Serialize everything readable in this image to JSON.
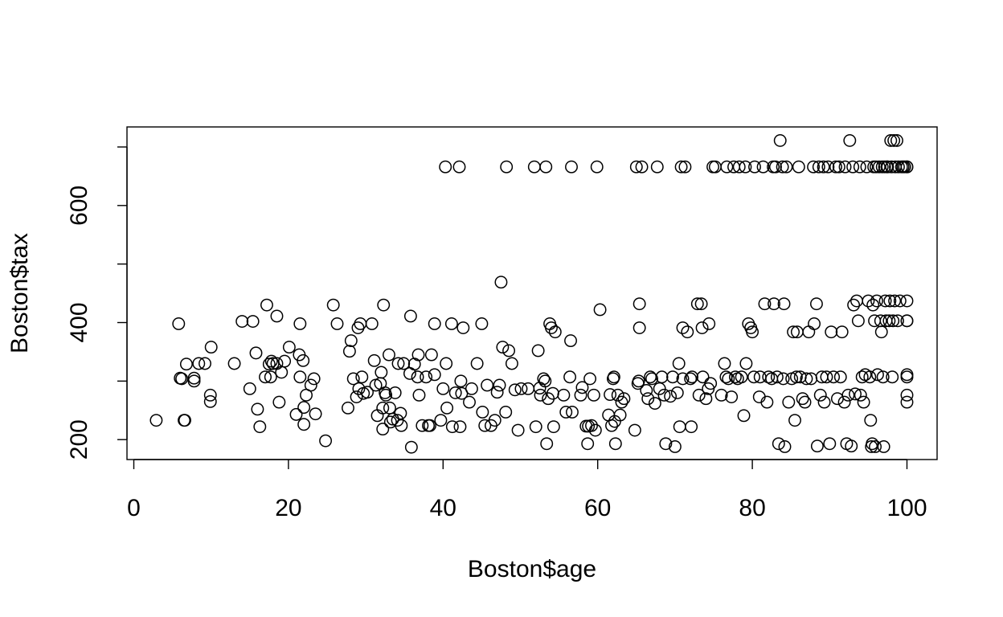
{
  "chart_data": {
    "type": "scatter",
    "title": "",
    "xlabel": "Boston$age",
    "ylabel": "Boston$tax",
    "xlim": [
      0,
      100
    ],
    "ylim": [
      187,
      711
    ],
    "x_ticks": [
      0,
      20,
      40,
      60,
      80,
      100
    ],
    "y_ticks": [
      200,
      400,
      600
    ],
    "y_minor_ticks": [
      300,
      500,
      700
    ],
    "grid": false,
    "marker": "open-circle",
    "colors": {
      "marker": "#000000",
      "axis": "#000000",
      "background": "#ffffff"
    },
    "points": [
      [
        2.9,
        233
      ],
      [
        5.8,
        398
      ],
      [
        6.0,
        305
      ],
      [
        6.2,
        304
      ],
      [
        6.5,
        233
      ],
      [
        6.6,
        233
      ],
      [
        6.8,
        329
      ],
      [
        7.8,
        300
      ],
      [
        7.8,
        305
      ],
      [
        8.4,
        330
      ],
      [
        9.2,
        330
      ],
      [
        9.9,
        276
      ],
      [
        9.9,
        265
      ],
      [
        10.0,
        358
      ],
      [
        13.0,
        330
      ],
      [
        14.0,
        402
      ],
      [
        15.0,
        287
      ],
      [
        15.4,
        402
      ],
      [
        15.8,
        348
      ],
      [
        16.0,
        252
      ],
      [
        16.3,
        222
      ],
      [
        17.0,
        307
      ],
      [
        17.2,
        430
      ],
      [
        17.5,
        329
      ],
      [
        17.7,
        307
      ],
      [
        17.8,
        334
      ],
      [
        18.0,
        330
      ],
      [
        18.5,
        411
      ],
      [
        18.5,
        330
      ],
      [
        18.8,
        264
      ],
      [
        19.1,
        315
      ],
      [
        19.5,
        334
      ],
      [
        20.1,
        358
      ],
      [
        21.0,
        243
      ],
      [
        21.4,
        345
      ],
      [
        21.5,
        398
      ],
      [
        21.5,
        307
      ],
      [
        21.9,
        335
      ],
      [
        22.0,
        226
      ],
      [
        22.0,
        255
      ],
      [
        22.3,
        276
      ],
      [
        22.9,
        293
      ],
      [
        23.3,
        304
      ],
      [
        23.5,
        244
      ],
      [
        24.8,
        198
      ],
      [
        25.8,
        430
      ],
      [
        26.3,
        398
      ],
      [
        27.7,
        254
      ],
      [
        27.9,
        351
      ],
      [
        28.1,
        369
      ],
      [
        28.4,
        304
      ],
      [
        28.8,
        273
      ],
      [
        29.0,
        391
      ],
      [
        29.1,
        287
      ],
      [
        29.3,
        398
      ],
      [
        29.5,
        307
      ],
      [
        29.7,
        279
      ],
      [
        30.2,
        281
      ],
      [
        30.8,
        398
      ],
      [
        31.1,
        335
      ],
      [
        31.3,
        293
      ],
      [
        31.5,
        241
      ],
      [
        31.9,
        296
      ],
      [
        32.0,
        315
      ],
      [
        32.2,
        254
      ],
      [
        32.2,
        218
      ],
      [
        32.3,
        430
      ],
      [
        32.5,
        280
      ],
      [
        32.6,
        276
      ],
      [
        33.0,
        345
      ],
      [
        33.1,
        254
      ],
      [
        33.2,
        230
      ],
      [
        33.5,
        235
      ],
      [
        33.8,
        280
      ],
      [
        34.1,
        233
      ],
      [
        34.2,
        330
      ],
      [
        34.5,
        245
      ],
      [
        34.6,
        224
      ],
      [
        34.9,
        330
      ],
      [
        35.7,
        313
      ],
      [
        35.8,
        411
      ],
      [
        35.9,
        187
      ],
      [
        36.3,
        329
      ],
      [
        36.7,
        307
      ],
      [
        36.8,
        345
      ],
      [
        36.9,
        276
      ],
      [
        37.3,
        224
      ],
      [
        37.8,
        307
      ],
      [
        38.1,
        224
      ],
      [
        38.3,
        224
      ],
      [
        38.5,
        345
      ],
      [
        38.9,
        398
      ],
      [
        38.9,
        311
      ],
      [
        39.7,
        233
      ],
      [
        40.0,
        287
      ],
      [
        40.3,
        666
      ],
      [
        40.4,
        330
      ],
      [
        40.5,
        254
      ],
      [
        41.1,
        398
      ],
      [
        41.2,
        222
      ],
      [
        41.6,
        280
      ],
      [
        42.1,
        666
      ],
      [
        42.2,
        222
      ],
      [
        42.3,
        300
      ],
      [
        42.4,
        279
      ],
      [
        42.6,
        391
      ],
      [
        43.4,
        264
      ],
      [
        43.7,
        287
      ],
      [
        44.4,
        330
      ],
      [
        45.0,
        398
      ],
      [
        45.1,
        247
      ],
      [
        45.4,
        224
      ],
      [
        45.7,
        293
      ],
      [
        46.2,
        224
      ],
      [
        46.7,
        233
      ],
      [
        47.0,
        281
      ],
      [
        47.3,
        293
      ],
      [
        47.5,
        469
      ],
      [
        47.7,
        358
      ],
      [
        48.1,
        247
      ],
      [
        48.2,
        666
      ],
      [
        48.5,
        352
      ],
      [
        48.9,
        330
      ],
      [
        49.3,
        285
      ],
      [
        49.7,
        216
      ],
      [
        50.1,
        287
      ],
      [
        51.0,
        287
      ],
      [
        51.8,
        666
      ],
      [
        52.0,
        222
      ],
      [
        52.3,
        352
      ],
      [
        52.5,
        288
      ],
      [
        52.6,
        276
      ],
      [
        53.0,
        304
      ],
      [
        53.2,
        300
      ],
      [
        53.3,
        666
      ],
      [
        53.4,
        193
      ],
      [
        53.6,
        270
      ],
      [
        53.8,
        398
      ],
      [
        54.0,
        391
      ],
      [
        54.2,
        279
      ],
      [
        54.3,
        222
      ],
      [
        54.5,
        384
      ],
      [
        55.6,
        276
      ],
      [
        55.9,
        247
      ],
      [
        56.4,
        307
      ],
      [
        56.5,
        369
      ],
      [
        56.6,
        666
      ],
      [
        56.7,
        247
      ],
      [
        57.8,
        276
      ],
      [
        58.0,
        289
      ],
      [
        58.5,
        223
      ],
      [
        58.7,
        193
      ],
      [
        58.8,
        223
      ],
      [
        59.0,
        304
      ],
      [
        59.2,
        224
      ],
      [
        59.5,
        276
      ],
      [
        59.7,
        216
      ],
      [
        59.9,
        666
      ],
      [
        60.3,
        422
      ],
      [
        61.4,
        242
      ],
      [
        61.6,
        277
      ],
      [
        61.8,
        224
      ],
      [
        62.0,
        304
      ],
      [
        62.1,
        307
      ],
      [
        62.2,
        231
      ],
      [
        62.3,
        193
      ],
      [
        62.6,
        276
      ],
      [
        62.9,
        242
      ],
      [
        63.1,
        264
      ],
      [
        63.4,
        270
      ],
      [
        64.8,
        216
      ],
      [
        65.0,
        666
      ],
      [
        65.2,
        296
      ],
      [
        65.3,
        300
      ],
      [
        65.4,
        432
      ],
      [
        65.4,
        391
      ],
      [
        65.7,
        666
      ],
      [
        66.3,
        284
      ],
      [
        66.5,
        270
      ],
      [
        66.8,
        307
      ],
      [
        67.0,
        304
      ],
      [
        67.4,
        262
      ],
      [
        67.7,
        666
      ],
      [
        68.0,
        287
      ],
      [
        68.3,
        307
      ],
      [
        68.6,
        276
      ],
      [
        68.8,
        193
      ],
      [
        69.4,
        274
      ],
      [
        69.7,
        307
      ],
      [
        70.0,
        188
      ],
      [
        70.3,
        280
      ],
      [
        70.5,
        330
      ],
      [
        70.6,
        222
      ],
      [
        70.8,
        666
      ],
      [
        71.0,
        304
      ],
      [
        71.0,
        391
      ],
      [
        71.3,
        666
      ],
      [
        71.6,
        384
      ],
      [
        72.0,
        304
      ],
      [
        72.1,
        222
      ],
      [
        72.2,
        307
      ],
      [
        72.9,
        432
      ],
      [
        73.1,
        276
      ],
      [
        73.4,
        432
      ],
      [
        73.5,
        391
      ],
      [
        73.6,
        307
      ],
      [
        74.0,
        270
      ],
      [
        74.3,
        287
      ],
      [
        74.4,
        398
      ],
      [
        74.6,
        296
      ],
      [
        74.9,
        666
      ],
      [
        75.2,
        666
      ],
      [
        76.0,
        276
      ],
      [
        76.4,
        330
      ],
      [
        76.6,
        307
      ],
      [
        76.7,
        666
      ],
      [
        76.9,
        304
      ],
      [
        77.3,
        273
      ],
      [
        77.6,
        666
      ],
      [
        77.8,
        307
      ],
      [
        78.1,
        304
      ],
      [
        78.3,
        666
      ],
      [
        78.6,
        307
      ],
      [
        78.9,
        241
      ],
      [
        79.1,
        666
      ],
      [
        79.2,
        330
      ],
      [
        79.5,
        398
      ],
      [
        79.8,
        391
      ],
      [
        80.0,
        384
      ],
      [
        80.2,
        307
      ],
      [
        80.3,
        666
      ],
      [
        80.9,
        273
      ],
      [
        81.0,
        307
      ],
      [
        81.4,
        666
      ],
      [
        81.6,
        432
      ],
      [
        81.9,
        264
      ],
      [
        82.1,
        307
      ],
      [
        82.5,
        304
      ],
      [
        82.7,
        666
      ],
      [
        82.8,
        432
      ],
      [
        83.0,
        666
      ],
      [
        83.2,
        307
      ],
      [
        83.4,
        193
      ],
      [
        83.6,
        711
      ],
      [
        83.9,
        666
      ],
      [
        84.0,
        304
      ],
      [
        84.1,
        432
      ],
      [
        84.2,
        188
      ],
      [
        84.4,
        666
      ],
      [
        84.7,
        264
      ],
      [
        85.1,
        304
      ],
      [
        85.3,
        384
      ],
      [
        85.5,
        233
      ],
      [
        85.7,
        307
      ],
      [
        85.8,
        384
      ],
      [
        86.0,
        666
      ],
      [
        86.2,
        307
      ],
      [
        86.5,
        270
      ],
      [
        86.8,
        264
      ],
      [
        87.0,
        304
      ],
      [
        87.3,
        384
      ],
      [
        87.6,
        304
      ],
      [
        87.9,
        666
      ],
      [
        88.0,
        398
      ],
      [
        88.3,
        432
      ],
      [
        88.4,
        189
      ],
      [
        88.6,
        666
      ],
      [
        88.8,
        276
      ],
      [
        89.0,
        307
      ],
      [
        89.2,
        666
      ],
      [
        89.3,
        264
      ],
      [
        89.6,
        307
      ],
      [
        89.8,
        666
      ],
      [
        90.0,
        193
      ],
      [
        90.2,
        384
      ],
      [
        90.5,
        307
      ],
      [
        90.8,
        666
      ],
      [
        91.0,
        270
      ],
      [
        91.2,
        666
      ],
      [
        91.4,
        307
      ],
      [
        91.6,
        384
      ],
      [
        91.9,
        264
      ],
      [
        92.0,
        666
      ],
      [
        92.2,
        193
      ],
      [
        92.4,
        276
      ],
      [
        92.6,
        711
      ],
      [
        92.8,
        189
      ],
      [
        93.0,
        666
      ],
      [
        93.1,
        430
      ],
      [
        93.3,
        278
      ],
      [
        93.5,
        437
      ],
      [
        93.7,
        403
      ],
      [
        93.9,
        666
      ],
      [
        94.0,
        276
      ],
      [
        94.2,
        307
      ],
      [
        94.4,
        264
      ],
      [
        94.6,
        311
      ],
      [
        94.8,
        666
      ],
      [
        95.0,
        437
      ],
      [
        95.2,
        307
      ],
      [
        95.3,
        233
      ],
      [
        95.4,
        188
      ],
      [
        95.5,
        193
      ],
      [
        95.6,
        430
      ],
      [
        95.7,
        666
      ],
      [
        95.8,
        403
      ],
      [
        95.9,
        188
      ],
      [
        96.0,
        666
      ],
      [
        96.1,
        437
      ],
      [
        96.2,
        311
      ],
      [
        96.4,
        666
      ],
      [
        96.6,
        403
      ],
      [
        96.7,
        384
      ],
      [
        96.8,
        666
      ],
      [
        96.9,
        307
      ],
      [
        97.0,
        188
      ],
      [
        97.1,
        666
      ],
      [
        97.2,
        437
      ],
      [
        97.3,
        403
      ],
      [
        97.4,
        666
      ],
      [
        97.5,
        666
      ],
      [
        97.7,
        403
      ],
      [
        97.8,
        437
      ],
      [
        97.9,
        711
      ],
      [
        98.0,
        666
      ],
      [
        98.1,
        307
      ],
      [
        98.2,
        403
      ],
      [
        98.3,
        711
      ],
      [
        98.4,
        437
      ],
      [
        98.5,
        666
      ],
      [
        98.7,
        711
      ],
      [
        98.8,
        403
      ],
      [
        98.9,
        666
      ],
      [
        99.1,
        437
      ],
      [
        99.3,
        666
      ],
      [
        99.5,
        666
      ],
      [
        99.7,
        666
      ],
      [
        100.0,
        666
      ],
      [
        100.0,
        437
      ],
      [
        100.0,
        403
      ],
      [
        100.0,
        311
      ],
      [
        100.0,
        307
      ],
      [
        100.0,
        276
      ],
      [
        100.0,
        264
      ],
      [
        100.0,
        666
      ],
      [
        100.0,
        403
      ]
    ]
  }
}
